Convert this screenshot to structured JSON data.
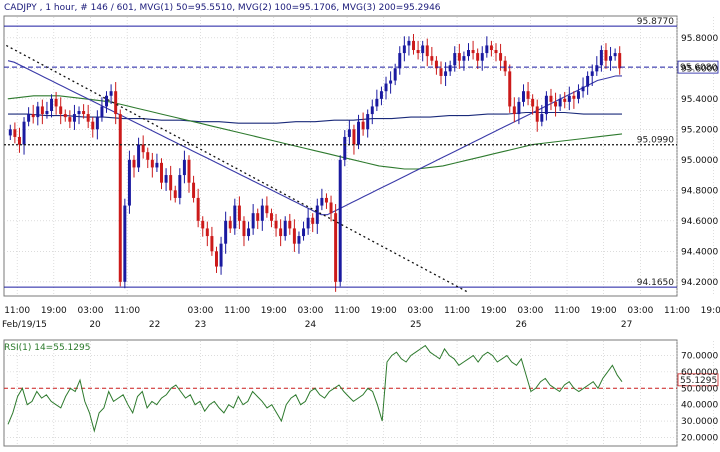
{
  "header": {
    "text": "CADJPY , 1 hour, # 146 / 601, MVG(1) 50=95.5510, MVG(2) 100=95.1706, MVG(3) 200=95.2946"
  },
  "rsi": {
    "header": "RSI(1) 14=55.1295",
    "current_label": "55.1295",
    "current_value": 55.1295,
    "level": 50,
    "ticks": [
      "70.0000",
      "60.0000",
      "50.0000",
      "40.0000",
      "30.0000",
      "20.0000"
    ],
    "tick_values": [
      70,
      60,
      50,
      40,
      30,
      20
    ],
    "ylim": [
      16,
      77
    ],
    "values": [
      28,
      35,
      45,
      50,
      40,
      42,
      48,
      44,
      46,
      42,
      40,
      38,
      45,
      50,
      48,
      55,
      42,
      35,
      24,
      35,
      38,
      48,
      42,
      44,
      46,
      40,
      35,
      45,
      48,
      38,
      42,
      40,
      44,
      46,
      50,
      52,
      48,
      44,
      46,
      40,
      42,
      36,
      40,
      42,
      38,
      35,
      40,
      38,
      45,
      40,
      42,
      48,
      45,
      42,
      38,
      40,
      35,
      30,
      40,
      44,
      46,
      40,
      42,
      48,
      50,
      46,
      44,
      48,
      50,
      52,
      48,
      45,
      42,
      44,
      46,
      50,
      48,
      40,
      30,
      66,
      70,
      72,
      68,
      66,
      70,
      72,
      74,
      76,
      72,
      70,
      68,
      74,
      70,
      68,
      64,
      66,
      68,
      70,
      66,
      70,
      72,
      70,
      66,
      68,
      70,
      66,
      64,
      68,
      58,
      48,
      50,
      54,
      56,
      52,
      50,
      48,
      52,
      54,
      50,
      48,
      50,
      52,
      54,
      50,
      56,
      60,
      64,
      58,
      54
    ]
  },
  "chart_data": {
    "type": "candlestick",
    "symbol": "CADJPY",
    "timeframe": "1 hour",
    "ylim": [
      94.12,
      95.93
    ],
    "y_ticks": [
      "95.8000",
      "95.6000",
      "95.4000",
      "95.2000",
      "95.0000",
      "94.8000",
      "94.6000",
      "94.4000",
      "94.2000"
    ],
    "y_tick_values": [
      95.8,
      95.6,
      95.4,
      95.2,
      95.0,
      94.8,
      94.6,
      94.4,
      94.2
    ],
    "x_time_labels": [
      "11:00",
      "19:00",
      "03:00",
      "11:00",
      "03:00",
      "11:00",
      "19:00",
      "03:00",
      "11:00",
      "19:00",
      "03:00",
      "11:00",
      "19:00",
      "03:00",
      "11:00",
      "19:00",
      "03:00",
      "11:00",
      "19:00"
    ],
    "x_time_index": [
      2,
      10,
      18,
      26,
      42,
      50,
      58,
      66,
      74,
      82,
      90,
      98,
      106,
      114,
      122,
      130,
      138,
      146,
      154
    ],
    "x_date_labels": [
      "Feb/19/15",
      "20",
      "22",
      "23",
      "24",
      "25",
      "26",
      "27"
    ],
    "x_date_index": [
      0,
      19,
      32,
      42,
      66,
      89,
      112,
      135
    ],
    "levels": [
      {
        "name": "high-line",
        "value": 95.877,
        "label": "95.8770",
        "color": "#1a1aa0",
        "style": "solid"
      },
      {
        "name": "current-line",
        "value": 95.608,
        "label": "95.6080",
        "color": "#1a1aa0",
        "style": "dashed"
      },
      {
        "name": "mid-line",
        "value": 95.099,
        "label": "95.0990",
        "color": "#111111",
        "style": "dotted"
      },
      {
        "name": "low-line",
        "value": 94.165,
        "label": "94.1650",
        "color": "#1a1aa0",
        "style": "solid"
      }
    ],
    "colors": {
      "up": "#1a1aa0",
      "down": "#cc1a1a",
      "ma50": "#3a3aa8",
      "ma100": "#2e7a2e",
      "ma200": "#1a2a7a"
    },
    "close": [
      95.2,
      95.15,
      95.1,
      95.25,
      95.3,
      95.28,
      95.35,
      95.3,
      95.32,
      95.4,
      95.35,
      95.3,
      95.28,
      95.25,
      95.3,
      95.32,
      95.3,
      95.25,
      95.2,
      95.28,
      95.35,
      95.42,
      95.45,
      95.3,
      94.2,
      94.7,
      95.0,
      94.95,
      95.1,
      95.05,
      95.0,
      94.95,
      94.98,
      94.85,
      94.9,
      94.8,
      94.75,
      94.9,
      95.0,
      94.85,
      94.75,
      94.6,
      94.55,
      94.5,
      94.4,
      94.3,
      94.45,
      94.6,
      94.55,
      94.7,
      94.6,
      94.5,
      94.55,
      94.65,
      94.6,
      94.7,
      94.65,
      94.6,
      94.55,
      94.5,
      94.6,
      94.55,
      94.45,
      94.5,
      94.55,
      94.62,
      94.58,
      94.7,
      94.75,
      94.72,
      94.65,
      94.2,
      95.0,
      95.15,
      95.2,
      95.1,
      95.25,
      95.2,
      95.3,
      95.35,
      95.4,
      95.45,
      95.5,
      95.52,
      95.6,
      95.7,
      95.75,
      95.78,
      95.72,
      95.7,
      95.75,
      95.68,
      95.65,
      95.6,
      95.55,
      95.58,
      95.62,
      95.7,
      95.65,
      95.68,
      95.72,
      95.7,
      95.65,
      95.7,
      95.75,
      95.72,
      95.7,
      95.65,
      95.58,
      95.35,
      95.3,
      95.38,
      95.45,
      95.4,
      95.35,
      95.25,
      95.3,
      95.42,
      95.38,
      95.35,
      95.4,
      95.38,
      95.42,
      95.4,
      95.45,
      95.48,
      95.55,
      95.58,
      95.62,
      95.72,
      95.65,
      95.68,
      95.7,
      95.6
    ],
    "ma50": [
      95.65,
      95.64,
      95.62,
      95.6,
      95.58,
      95.56,
      95.54,
      95.52,
      95.5,
      95.48,
      95.46,
      95.44,
      95.42,
      95.4,
      95.38,
      95.36,
      95.34,
      95.32,
      95.3,
      95.28,
      95.26,
      95.24,
      95.22,
      95.2,
      95.18,
      95.16,
      95.14,
      95.12,
      95.1,
      95.08,
      95.06,
      95.04,
      95.02,
      95.0,
      94.98,
      94.96,
      94.94,
      94.92,
      94.9,
      94.88,
      94.86,
      94.84,
      94.82,
      94.8,
      94.78,
      94.76,
      94.74,
      94.72,
      94.7,
      94.68,
      94.66,
      94.64,
      94.64,
      94.66,
      94.68,
      94.7,
      94.72,
      94.74,
      94.76,
      94.78,
      94.8,
      94.82,
      94.84,
      94.86,
      94.88,
      94.9,
      94.92,
      94.94,
      94.96,
      94.98,
      95.0,
      95.02,
      95.04,
      95.06,
      95.08,
      95.1,
      95.12,
      95.14,
      95.16,
      95.18,
      95.2,
      95.22,
      95.24,
      95.26,
      95.28,
      95.3,
      95.32,
      95.34,
      95.36,
      95.38,
      95.4,
      95.42,
      95.44,
      95.46,
      95.48,
      95.5,
      95.52,
      95.53,
      95.54,
      95.55,
      95.55
    ],
    "ma100": [
      95.4,
      95.41,
      95.42,
      95.42,
      95.42,
      95.41,
      95.4,
      95.39,
      95.38,
      95.36,
      95.34,
      95.32,
      95.3,
      95.28,
      95.26,
      95.24,
      95.22,
      95.2,
      95.18,
      95.16,
      95.14,
      95.12,
      95.1,
      95.08,
      95.06,
      95.04,
      95.02,
      95.0,
      94.98,
      94.96,
      94.95,
      94.94,
      94.94,
      94.95,
      94.96,
      94.98,
      95.0,
      95.02,
      95.04,
      95.06,
      95.08,
      95.1,
      95.11,
      95.12,
      95.13,
      95.14,
      95.15,
      95.16,
      95.17
    ],
    "ma200": [
      95.3,
      95.3,
      95.29,
      95.29,
      95.28,
      95.28,
      95.27,
      95.27,
      95.26,
      95.26,
      95.25,
      95.25,
      95.24,
      95.24,
      95.24,
      95.25,
      95.25,
      95.26,
      95.26,
      95.27,
      95.27,
      95.28,
      95.28,
      95.29,
      95.29,
      95.3,
      95.3,
      95.31,
      95.31,
      95.31,
      95.3,
      95.3,
      95.3
    ]
  }
}
